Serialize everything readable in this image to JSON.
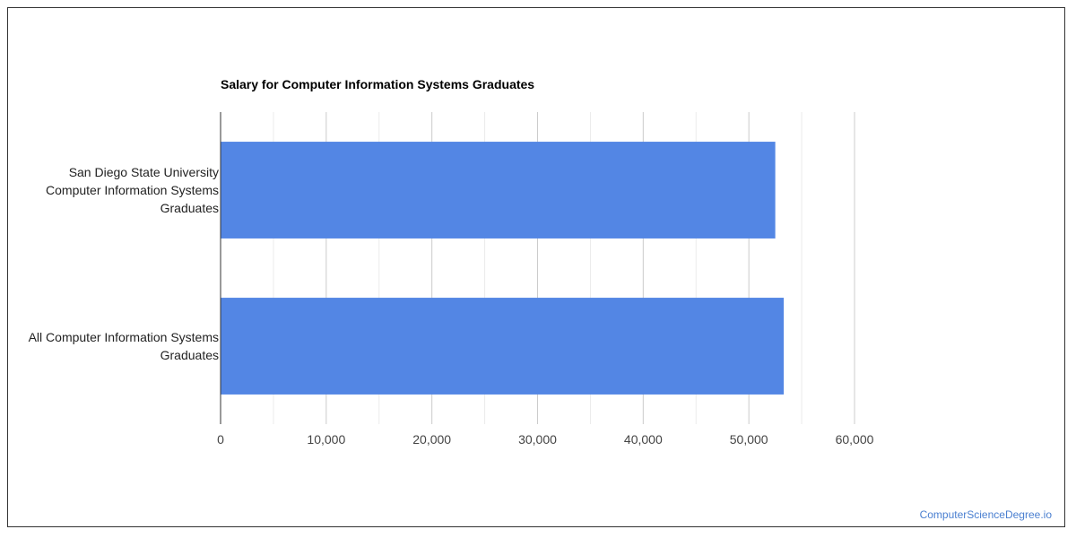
{
  "chart_data": {
    "type": "bar",
    "orientation": "horizontal",
    "title": "Salary for Computer Information Systems Graduates",
    "xlabel": "",
    "ylabel": "",
    "categories": [
      [
        "San Diego State University",
        "Computer Information Systems",
        "Graduates"
      ],
      [
        "All Computer Information Systems",
        "Graduates"
      ]
    ],
    "values": [
      52500,
      53300
    ],
    "xlim": [
      0,
      60000
    ],
    "xticks": [
      "0",
      "10,000",
      "20,000",
      "30,000",
      "40,000",
      "50,000",
      "60,000"
    ],
    "grid": true,
    "bar_color": "#5386e4",
    "legend": "none"
  },
  "watermark": "ComputerScienceDegree.io"
}
